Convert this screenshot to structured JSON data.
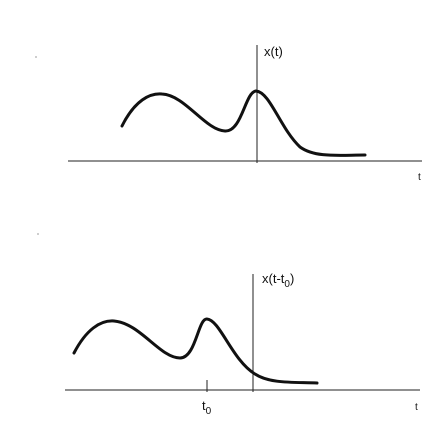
{
  "top": {
    "y_label": "x(t)",
    "x_label": "t"
  },
  "bottom": {
    "y_label": {
      "before": "x(t-t",
      "sub": "0",
      "after": ")"
    },
    "x_label": "t",
    "shift_label": {
      "main": "t",
      "sub": "0"
    }
  }
}
